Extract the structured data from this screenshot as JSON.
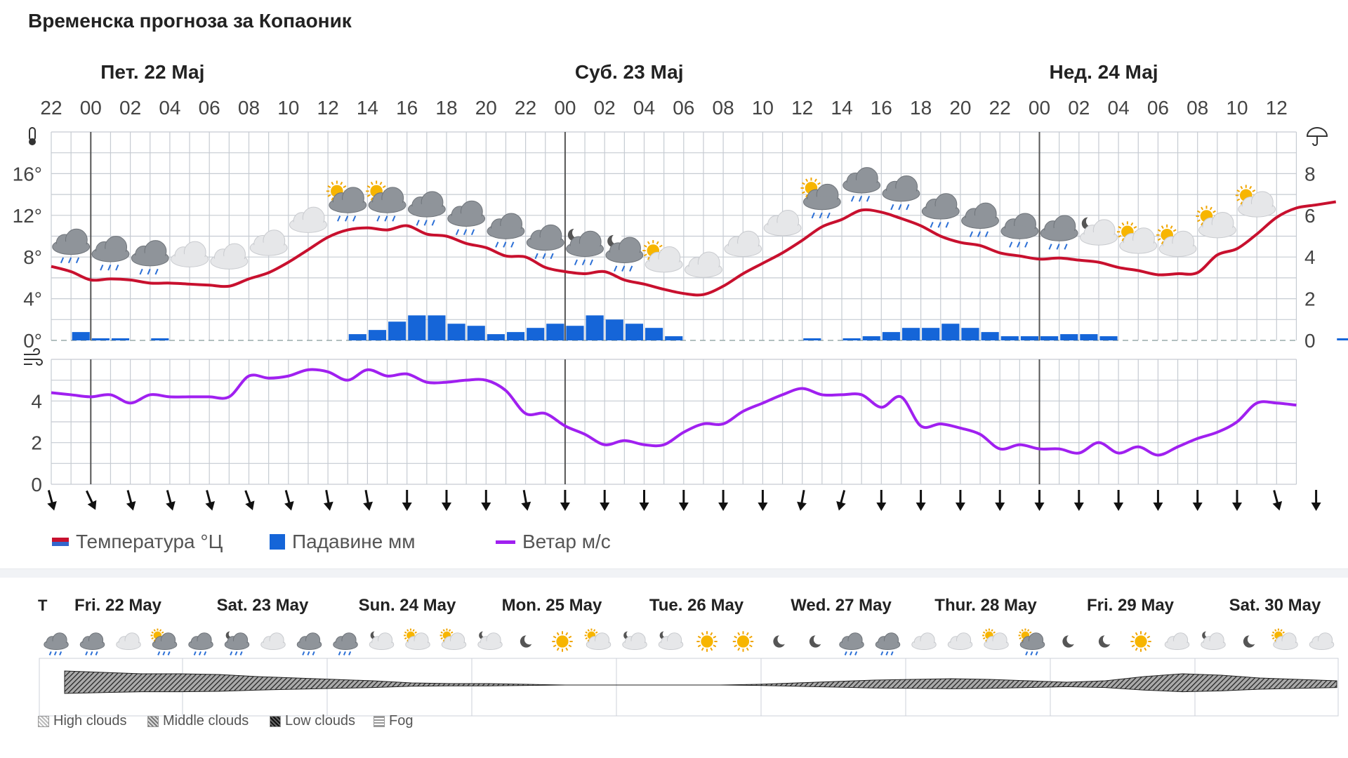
{
  "title": "Временска прогноза за Копаоник",
  "chart_data": {
    "type": "line",
    "day_labels": [
      "Пет. 22 Мај",
      "Суб. 23 Мај",
      "Нед. 24 Мај"
    ],
    "hour_ticks": [
      "22",
      "00",
      "02",
      "04",
      "06",
      "08",
      "10",
      "12",
      "14",
      "16",
      "18",
      "20",
      "22",
      "00",
      "02",
      "04",
      "06",
      "08",
      "10",
      "12",
      "14",
      "16",
      "18",
      "20",
      "22",
      "00",
      "02",
      "04",
      "06",
      "08",
      "10",
      "12"
    ],
    "temp_axis_ticks": [
      "0°",
      "4°",
      "8°",
      "12°",
      "16°"
    ],
    "temp_ylim": [
      0,
      20
    ],
    "precip_axis_ticks": [
      "0",
      "2",
      "4",
      "6",
      "8"
    ],
    "precip_ylim": [
      0,
      10
    ],
    "wind_axis_ticks": [
      "0",
      "2",
      "4"
    ],
    "wind_ylim": [
      0,
      6
    ],
    "temperature": [
      7.1,
      6.6,
      5.8,
      5.9,
      5.8,
      5.5,
      5.5,
      5.4,
      5.3,
      5.2,
      5.9,
      6.5,
      7.5,
      8.7,
      9.9,
      10.6,
      10.8,
      10.6,
      11.0,
      10.2,
      10.0,
      9.3,
      8.9,
      8.1,
      8.0,
      7.0,
      6.6,
      6.4,
      6.6,
      5.8,
      5.4,
      4.9,
      4.5,
      4.4,
      5.2,
      6.4,
      7.4,
      8.4,
      9.6,
      10.9,
      11.6,
      12.5,
      12.3,
      11.7,
      11.0,
      10.0,
      9.4,
      9.1,
      8.4,
      8.1,
      7.8,
      7.9,
      7.7,
      7.5,
      7.0,
      6.7,
      6.3,
      6.4,
      6.5,
      8.2,
      8.8,
      10.2,
      11.8,
      12.7,
      13.0,
      13.3
    ],
    "precipitation": [
      0,
      0.4,
      0.1,
      0.1,
      0,
      0.1,
      0,
      0,
      0,
      0,
      0,
      0,
      0,
      0,
      0,
      0.3,
      0.5,
      0.9,
      1.2,
      1.2,
      0.8,
      0.7,
      0.3,
      0.4,
      0.6,
      0.8,
      0.7,
      1.2,
      1.0,
      0.8,
      0.6,
      0.2,
      0,
      0,
      0,
      0,
      0,
      0,
      0.1,
      0,
      0.1,
      0.2,
      0.4,
      0.6,
      0.6,
      0.8,
      0.6,
      0.4,
      0.2,
      0.2,
      0.2,
      0.3,
      0.3,
      0.2,
      0,
      0,
      0,
      0,
      0,
      0,
      0,
      0,
      0,
      0,
      0,
      0.1
    ],
    "wind": [
      4.4,
      4.3,
      4.2,
      4.3,
      3.9,
      4.3,
      4.2,
      4.2,
      4.2,
      4.2,
      5.2,
      5.1,
      5.2,
      5.5,
      5.4,
      5.0,
      5.5,
      5.2,
      5.3,
      4.9,
      4.9,
      5.0,
      5.0,
      4.5,
      3.4,
      3.4,
      2.8,
      2.4,
      1.9,
      2.1,
      1.9,
      1.9,
      2.5,
      2.9,
      2.9,
      3.5,
      3.9,
      4.3,
      4.6,
      4.3,
      4.3,
      4.3,
      3.7,
      4.2,
      2.8,
      2.9,
      2.7,
      2.4,
      1.7,
      1.9,
      1.7,
      1.7,
      1.5,
      2.0,
      1.5,
      1.8,
      1.4,
      1.8,
      2.2,
      2.5,
      3.0,
      3.9,
      3.9,
      3.8
    ],
    "wind_directions_deg": [
      -15,
      -25,
      -15,
      -15,
      -15,
      -20,
      -15,
      -10,
      -10,
      0,
      0,
      0,
      -10,
      0,
      0,
      0,
      0,
      0,
      0,
      10,
      15,
      0,
      0,
      0,
      0,
      0,
      0,
      0,
      0,
      0,
      0,
      -15,
      0,
      0
    ],
    "hourly_icons": [
      "cloud-rain",
      "cloud-rain",
      "cloud-rain",
      "cloud",
      "cloud",
      "cloud",
      "cloud",
      "sun-cloud-rain",
      "sun-cloud-rain",
      "cloud-rain",
      "cloud-rain",
      "cloud-rain",
      "cloud-rain",
      "moon-cloud-rain",
      "moon-cloud-rain",
      "sun-cloud",
      "cloud",
      "cloud",
      "cloud",
      "sun-cloud-rain",
      "cloud-rain",
      "cloud-rain",
      "cloud-rain",
      "cloud-rain",
      "cloud-rain",
      "cloud-rain",
      "moon-cloud",
      "sun-cloud",
      "sun-cloud",
      "sun-cloud",
      "sun-cloud"
    ],
    "legend": {
      "temperature": "Температура °Ц",
      "precipitation": "Падавине мм",
      "wind": "Ветар м/с"
    },
    "colors": {
      "temperature": "#c8102e",
      "precipitation": "#1565d8",
      "wind": "#a020f0",
      "grid": "#c6cbd2"
    }
  },
  "week": {
    "label_t": "T",
    "days": [
      "Fri. 22 May",
      "Sat. 23 May",
      "Sun. 24 May",
      "Mon. 25 May",
      "Tue. 26 May",
      "Wed. 27 May",
      "Thur. 28 May",
      "Fri. 29 May",
      "Sat. 30 May"
    ],
    "icons": [
      "cloud-rain",
      "cloud-rain",
      "cloud",
      "sun-cloud-rain",
      "cloud-rain",
      "moon-cloud-rain",
      "cloud",
      "cloud-rain",
      "cloud-rain",
      "moon-cloud",
      "sun-cloud",
      "sun-cloud",
      "moon-cloud",
      "moon",
      "sun",
      "sun-cloud",
      "moon-cloud",
      "moon-cloud",
      "sun",
      "sun",
      "moon",
      "moon",
      "cloud-rain",
      "cloud-rain",
      "cloud",
      "cloud",
      "sun-cloud",
      "sun-cloud-rain",
      "moon",
      "moon",
      "sun",
      "cloud",
      "moon-cloud",
      "moon",
      "sun-cloud",
      "cloud"
    ],
    "cloud_legend": [
      "High clouds",
      "Middle clouds",
      "Low clouds",
      "Fog"
    ]
  }
}
